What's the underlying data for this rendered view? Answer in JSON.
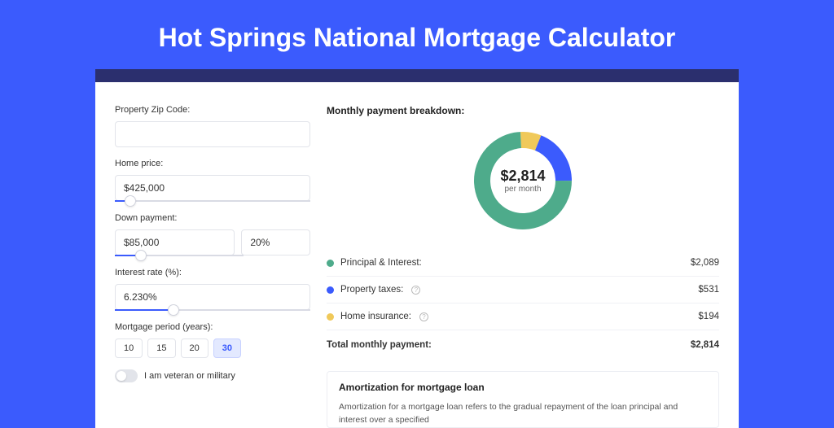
{
  "page": {
    "title": "Hot Springs National Mortgage Calculator",
    "background_color": "#3b5bfd",
    "band_color": "#2b2f6e",
    "card_background": "#ffffff"
  },
  "form": {
    "zip_label": "Property Zip Code:",
    "zip_value": "",
    "home_price_label": "Home price:",
    "home_price_value": "$425,000",
    "home_price_slider_pct": 8,
    "down_payment_label": "Down payment:",
    "down_payment_value": "$85,000",
    "down_payment_pct_value": "20%",
    "down_payment_slider_pct": 20,
    "interest_label": "Interest rate (%):",
    "interest_value": "6.230%",
    "interest_slider_pct": 30,
    "period_label": "Mortgage period (years):",
    "periods": [
      "10",
      "15",
      "20",
      "30"
    ],
    "period_active": "30",
    "veteran_label": "I am veteran or military",
    "veteran_on": false
  },
  "breakdown": {
    "title": "Monthly payment breakdown:",
    "center_value": "$2,814",
    "center_sub": "per month",
    "items": [
      {
        "label": "Principal & Interest:",
        "value": "$2,089",
        "color": "#4eab8b",
        "pct": 74.2,
        "has_info": false
      },
      {
        "label": "Property taxes:",
        "value": "$531",
        "color": "#3b5bfd",
        "pct": 18.9,
        "has_info": true
      },
      {
        "label": "Home insurance:",
        "value": "$194",
        "color": "#f0c95a",
        "pct": 6.9,
        "has_info": true
      }
    ],
    "total_label": "Total monthly payment:",
    "total_value": "$2,814",
    "donut_stroke_width": 20,
    "donut_radius": 50,
    "donut_bg": "#ffffff"
  },
  "amortization": {
    "title": "Amortization for mortgage loan",
    "text": "Amortization for a mortgage loan refers to the gradual repayment of the loan principal and interest over a specified"
  }
}
